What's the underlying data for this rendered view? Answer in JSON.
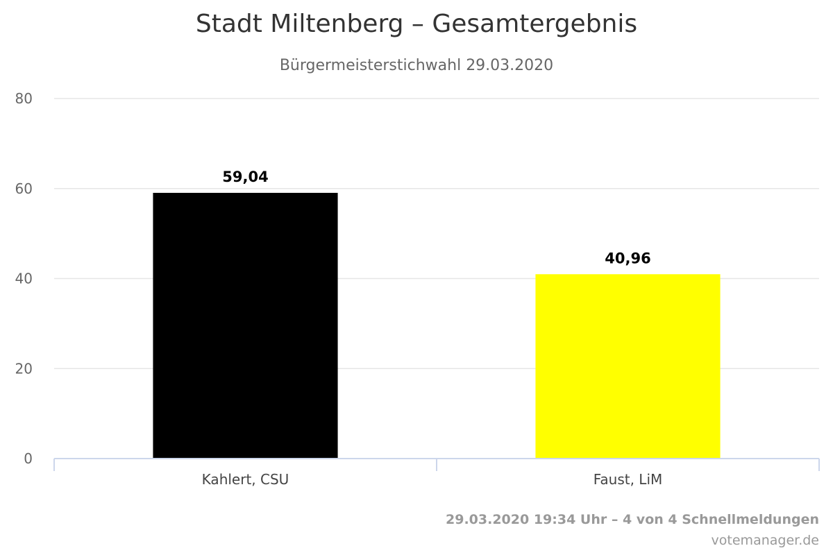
{
  "chart_data": {
    "type": "bar",
    "title": "Stadt Miltenberg – Gesamtergebnis",
    "subtitle": "Bürgermeisterstichwahl 29.03.2020",
    "categories": [
      "Kahlert, CSU",
      "Faust, LiM"
    ],
    "values": [
      59.04,
      40.96
    ],
    "value_labels": [
      "59,04",
      "40,96"
    ],
    "colors": [
      "#000000",
      "#ffff00"
    ],
    "ylim": [
      0,
      80
    ],
    "yticks": [
      0,
      20,
      40,
      60,
      80
    ],
    "grid": true,
    "legend": "none"
  },
  "credits": {
    "status": "29.03.2020 19:34 Uhr – 4 von 4 Schnellmeldungen",
    "source": "votemanager.de"
  }
}
